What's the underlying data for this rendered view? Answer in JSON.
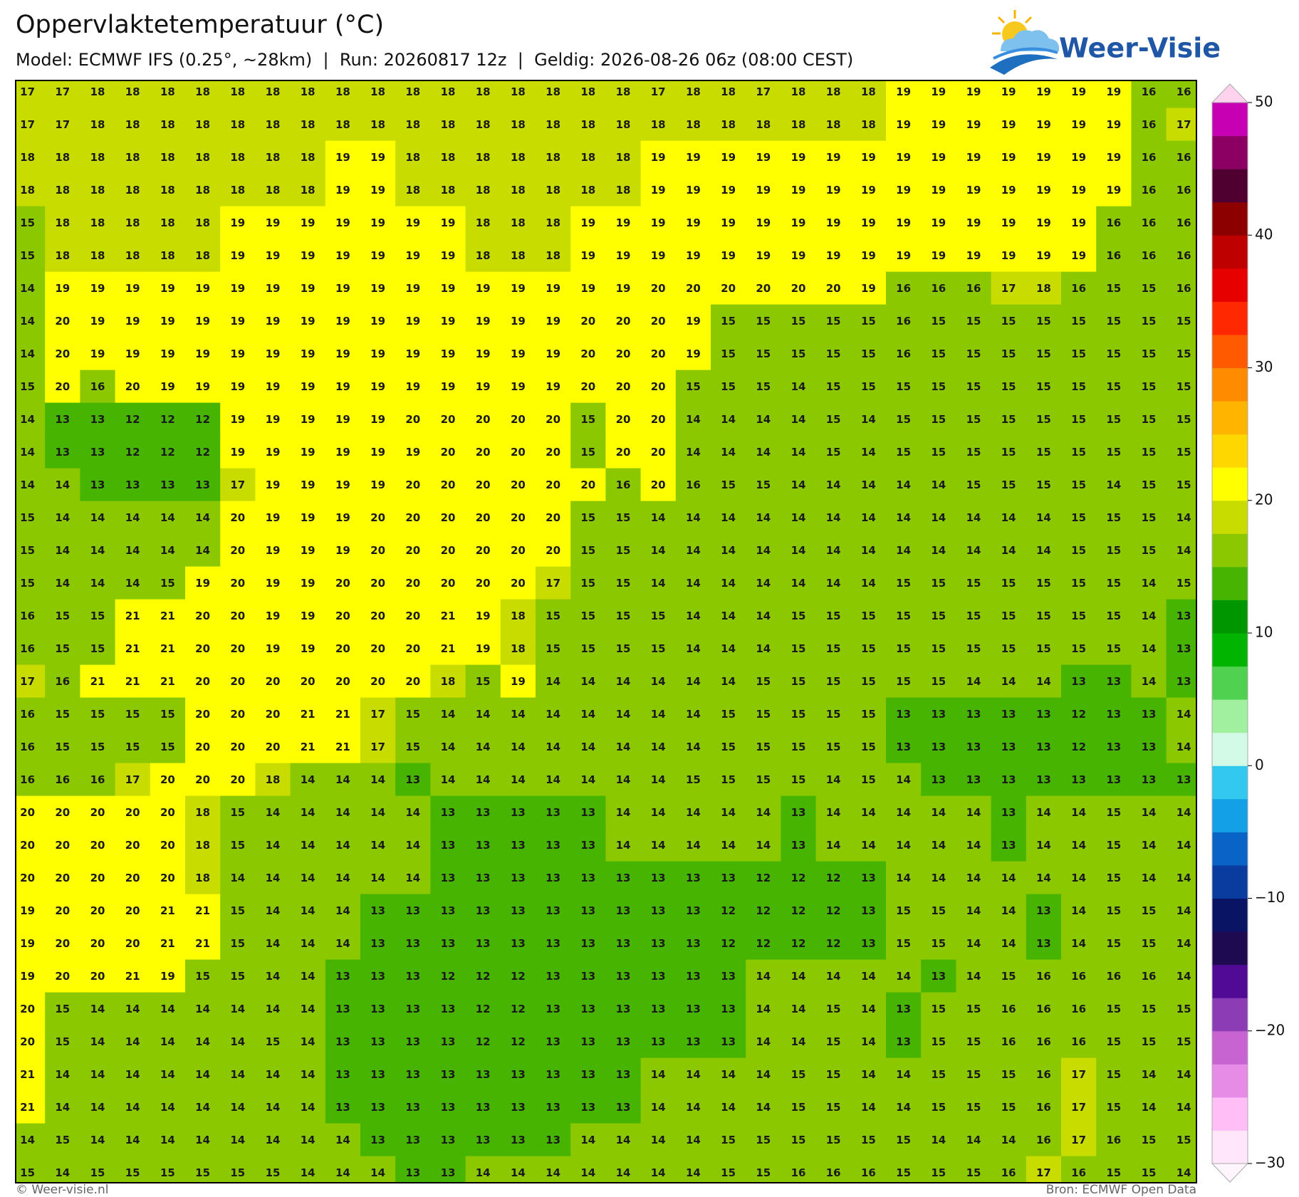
{
  "header": {
    "title": "Oppervlaktetemperatuur (°C)",
    "subtitle": "Model: ECMWF IFS (0.25°, ~28km)  |  Run: 20260817 12z  |  Geldig: 2026-08-26 06z (08:00 CEST)",
    "logo": "Weer-Visie"
  },
  "grid": [
    [
      17,
      17,
      18,
      18,
      18,
      18,
      18,
      18,
      18,
      18,
      18,
      18,
      18,
      18,
      18,
      18,
      18,
      18,
      17,
      18,
      18,
      17,
      18,
      18,
      18,
      19,
      19,
      19,
      19,
      19,
      19,
      19,
      16,
      16
    ],
    [
      17,
      17,
      18,
      18,
      18,
      18,
      18,
      18,
      18,
      18,
      18,
      18,
      18,
      18,
      18,
      18,
      18,
      18,
      18,
      18,
      18,
      18,
      18,
      18,
      18,
      19,
      19,
      19,
      19,
      19,
      19,
      19,
      16,
      17
    ],
    [
      18,
      18,
      18,
      18,
      18,
      18,
      18,
      18,
      18,
      19,
      19,
      18,
      18,
      18,
      18,
      18,
      18,
      18,
      19,
      19,
      19,
      19,
      19,
      19,
      19,
      19,
      19,
      19,
      19,
      19,
      19,
      19,
      16,
      16
    ],
    [
      18,
      18,
      18,
      18,
      18,
      18,
      18,
      18,
      18,
      19,
      19,
      18,
      18,
      18,
      18,
      18,
      18,
      18,
      19,
      19,
      19,
      19,
      19,
      19,
      19,
      19,
      19,
      19,
      19,
      19,
      19,
      19,
      16,
      16
    ],
    [
      15,
      18,
      18,
      18,
      18,
      18,
      19,
      19,
      19,
      19,
      19,
      19,
      19,
      18,
      18,
      18,
      19,
      19,
      19,
      19,
      19,
      19,
      19,
      19,
      19,
      19,
      19,
      19,
      19,
      19,
      19,
      16,
      16,
      16
    ],
    [
      15,
      18,
      18,
      18,
      18,
      18,
      19,
      19,
      19,
      19,
      19,
      19,
      19,
      18,
      18,
      18,
      19,
      19,
      19,
      19,
      19,
      19,
      19,
      19,
      19,
      19,
      19,
      19,
      19,
      19,
      19,
      16,
      16,
      16
    ],
    [
      14,
      19,
      19,
      19,
      19,
      19,
      19,
      19,
      19,
      19,
      19,
      19,
      19,
      19,
      19,
      19,
      19,
      19,
      20,
      20,
      20,
      20,
      20,
      20,
      19,
      16,
      16,
      16,
      17,
      18,
      16,
      15,
      15,
      16
    ],
    [
      14,
      20,
      19,
      19,
      19,
      19,
      19,
      19,
      19,
      19,
      19,
      19,
      19,
      19,
      19,
      19,
      20,
      20,
      20,
      19,
      15,
      15,
      15,
      15,
      15,
      16,
      15,
      15,
      15,
      15,
      15,
      15,
      15,
      15
    ],
    [
      14,
      20,
      19,
      19,
      19,
      19,
      19,
      19,
      19,
      19,
      19,
      19,
      19,
      19,
      19,
      19,
      20,
      20,
      20,
      19,
      15,
      15,
      15,
      15,
      15,
      16,
      15,
      15,
      15,
      15,
      15,
      15,
      15,
      15
    ],
    [
      15,
      20,
      16,
      20,
      19,
      19,
      19,
      19,
      19,
      19,
      19,
      19,
      19,
      19,
      19,
      19,
      20,
      20,
      20,
      15,
      15,
      15,
      14,
      15,
      15,
      15,
      15,
      15,
      15,
      15,
      15,
      15,
      15,
      15
    ],
    [
      14,
      13,
      13,
      12,
      12,
      12,
      19,
      19,
      19,
      19,
      19,
      20,
      20,
      20,
      20,
      20,
      15,
      20,
      20,
      14,
      14,
      14,
      14,
      15,
      14,
      15,
      15,
      15,
      15,
      15,
      15,
      15,
      15,
      15
    ],
    [
      14,
      13,
      13,
      12,
      12,
      12,
      19,
      19,
      19,
      19,
      19,
      19,
      20,
      20,
      20,
      20,
      15,
      20,
      20,
      14,
      14,
      14,
      14,
      15,
      14,
      15,
      15,
      15,
      15,
      15,
      15,
      15,
      15,
      15
    ],
    [
      14,
      14,
      13,
      13,
      13,
      13,
      17,
      19,
      19,
      19,
      19,
      20,
      20,
      20,
      20,
      20,
      20,
      16,
      20,
      16,
      15,
      15,
      14,
      14,
      14,
      14,
      14,
      15,
      15,
      15,
      15,
      14,
      15,
      15
    ],
    [
      15,
      14,
      14,
      14,
      14,
      14,
      20,
      19,
      19,
      19,
      20,
      20,
      20,
      20,
      20,
      20,
      15,
      15,
      14,
      14,
      14,
      14,
      14,
      14,
      14,
      14,
      14,
      14,
      14,
      14,
      15,
      15,
      15,
      14
    ],
    [
      15,
      14,
      14,
      14,
      14,
      14,
      20,
      19,
      19,
      19,
      20,
      20,
      20,
      20,
      20,
      20,
      15,
      15,
      14,
      14,
      14,
      14,
      14,
      14,
      14,
      14,
      14,
      14,
      14,
      14,
      15,
      15,
      15,
      14
    ],
    [
      15,
      14,
      14,
      14,
      15,
      19,
      20,
      19,
      19,
      20,
      20,
      20,
      20,
      20,
      20,
      17,
      15,
      15,
      14,
      14,
      14,
      14,
      14,
      14,
      14,
      15,
      15,
      15,
      15,
      15,
      15,
      15,
      14,
      15
    ],
    [
      16,
      15,
      15,
      21,
      21,
      20,
      20,
      19,
      19,
      20,
      20,
      20,
      21,
      19,
      18,
      15,
      15,
      15,
      15,
      14,
      14,
      14,
      15,
      15,
      15,
      15,
      15,
      15,
      15,
      15,
      15,
      15,
      14,
      13
    ],
    [
      16,
      15,
      15,
      21,
      21,
      20,
      20,
      19,
      19,
      20,
      20,
      20,
      21,
      19,
      18,
      15,
      15,
      15,
      15,
      14,
      14,
      14,
      15,
      15,
      15,
      15,
      15,
      15,
      15,
      15,
      15,
      15,
      14,
      13
    ],
    [
      17,
      16,
      21,
      21,
      21,
      20,
      20,
      20,
      20,
      20,
      20,
      20,
      18,
      15,
      19,
      14,
      14,
      14,
      14,
      14,
      14,
      15,
      15,
      15,
      15,
      15,
      15,
      14,
      14,
      14,
      13,
      13,
      14,
      13
    ],
    [
      16,
      15,
      15,
      15,
      15,
      20,
      20,
      20,
      21,
      21,
      17,
      15,
      14,
      14,
      14,
      14,
      14,
      14,
      14,
      14,
      15,
      15,
      15,
      15,
      15,
      13,
      13,
      13,
      13,
      13,
      12,
      13,
      13,
      14
    ],
    [
      16,
      15,
      15,
      15,
      15,
      20,
      20,
      20,
      21,
      21,
      17,
      15,
      14,
      14,
      14,
      14,
      14,
      14,
      14,
      14,
      15,
      15,
      15,
      15,
      15,
      13,
      13,
      13,
      13,
      13,
      12,
      13,
      13,
      14
    ],
    [
      16,
      16,
      16,
      17,
      20,
      20,
      20,
      18,
      14,
      14,
      14,
      13,
      14,
      14,
      14,
      14,
      14,
      14,
      14,
      15,
      15,
      15,
      15,
      14,
      15,
      14,
      13,
      13,
      13,
      13,
      13,
      13,
      13,
      13
    ],
    [
      20,
      20,
      20,
      20,
      20,
      18,
      15,
      14,
      14,
      14,
      14,
      14,
      13,
      13,
      13,
      13,
      13,
      14,
      14,
      14,
      14,
      14,
      13,
      14,
      14,
      14,
      14,
      14,
      13,
      14,
      14,
      15,
      14,
      14
    ],
    [
      20,
      20,
      20,
      20,
      20,
      18,
      15,
      14,
      14,
      14,
      14,
      14,
      13,
      13,
      13,
      13,
      13,
      14,
      14,
      14,
      14,
      14,
      13,
      14,
      14,
      14,
      14,
      14,
      13,
      14,
      14,
      15,
      14,
      14
    ],
    [
      20,
      20,
      20,
      20,
      20,
      18,
      14,
      14,
      14,
      14,
      14,
      14,
      13,
      13,
      13,
      13,
      13,
      13,
      13,
      13,
      13,
      12,
      12,
      12,
      13,
      14,
      14,
      14,
      14,
      14,
      14,
      15,
      14,
      14
    ],
    [
      19,
      20,
      20,
      20,
      21,
      21,
      15,
      14,
      14,
      14,
      13,
      13,
      13,
      13,
      13,
      13,
      13,
      13,
      13,
      13,
      12,
      12,
      12,
      12,
      13,
      15,
      15,
      14,
      14,
      13,
      14,
      15,
      15,
      14
    ],
    [
      19,
      20,
      20,
      20,
      21,
      21,
      15,
      14,
      14,
      14,
      13,
      13,
      13,
      13,
      13,
      13,
      13,
      13,
      13,
      13,
      12,
      12,
      12,
      12,
      13,
      15,
      15,
      14,
      14,
      13,
      14,
      15,
      15,
      14
    ],
    [
      19,
      20,
      20,
      21,
      19,
      15,
      15,
      14,
      14,
      13,
      13,
      13,
      12,
      12,
      12,
      13,
      13,
      13,
      13,
      13,
      13,
      14,
      14,
      14,
      14,
      14,
      13,
      14,
      15,
      16,
      16,
      16,
      16,
      14
    ],
    [
      20,
      15,
      14,
      14,
      14,
      14,
      14,
      14,
      14,
      13,
      13,
      13,
      13,
      12,
      12,
      13,
      13,
      13,
      13,
      13,
      13,
      14,
      14,
      15,
      14,
      13,
      15,
      15,
      16,
      16,
      16,
      15,
      15,
      15
    ],
    [
      20,
      15,
      14,
      14,
      14,
      14,
      14,
      15,
      14,
      13,
      13,
      13,
      13,
      12,
      12,
      13,
      13,
      13,
      13,
      13,
      13,
      14,
      14,
      15,
      14,
      13,
      15,
      15,
      16,
      16,
      16,
      15,
      15,
      15
    ],
    [
      21,
      14,
      14,
      14,
      14,
      14,
      14,
      14,
      14,
      13,
      13,
      13,
      13,
      13,
      13,
      13,
      13,
      13,
      14,
      14,
      14,
      14,
      15,
      15,
      14,
      14,
      15,
      15,
      15,
      16,
      17,
      15,
      14,
      14
    ],
    [
      21,
      14,
      14,
      14,
      14,
      14,
      14,
      14,
      14,
      13,
      13,
      13,
      13,
      13,
      13,
      13,
      13,
      13,
      14,
      14,
      14,
      14,
      15,
      15,
      14,
      14,
      15,
      15,
      15,
      16,
      17,
      15,
      14,
      14
    ],
    [
      14,
      15,
      14,
      14,
      14,
      14,
      14,
      14,
      14,
      14,
      13,
      13,
      13,
      13,
      13,
      13,
      14,
      14,
      14,
      14,
      15,
      15,
      15,
      15,
      15,
      15,
      14,
      14,
      14,
      16,
      17,
      16,
      15,
      15
    ],
    [
      15,
      14,
      15,
      15,
      15,
      15,
      15,
      15,
      14,
      14,
      14,
      13,
      13,
      14,
      14,
      14,
      14,
      14,
      14,
      14,
      15,
      15,
      16,
      16,
      16,
      15,
      15,
      15,
      16,
      17,
      16,
      15,
      15,
      14
    ]
  ],
  "colorbar": {
    "lim": [
      -30,
      50
    ],
    "ticks": [
      50,
      40,
      30,
      20,
      10,
      0,
      {
        "value": -10,
        "label": "−10"
      },
      {
        "value": -20,
        "label": "−20"
      },
      {
        "value": -30,
        "label": "−30"
      }
    ],
    "colors": [
      "#ffe6fa",
      "#ffbef5",
      "#e68ce6",
      "#c864d2",
      "#8c3cb4",
      "#500a96",
      "#1e0a50",
      "#0a1464",
      "#0a3ca0",
      "#0a64c8",
      "#14a0e6",
      "#32c8f0",
      "#d2fae6",
      "#a0f0a0",
      "#50d250",
      "#00b400",
      "#009600",
      "#46b400",
      "#8cc800",
      "#c8dc00",
      "#ffff00",
      "#ffd700",
      "#ffb400",
      "#ff8c00",
      "#ff5a00",
      "#ff2800",
      "#e60000",
      "#be0000",
      "#8c0000",
      "#500030",
      "#8c0064",
      "#c800b4"
    ]
  },
  "footer": {
    "left": "© Weer-visie.nl",
    "right": "Bron: ECMWF Open Data"
  }
}
